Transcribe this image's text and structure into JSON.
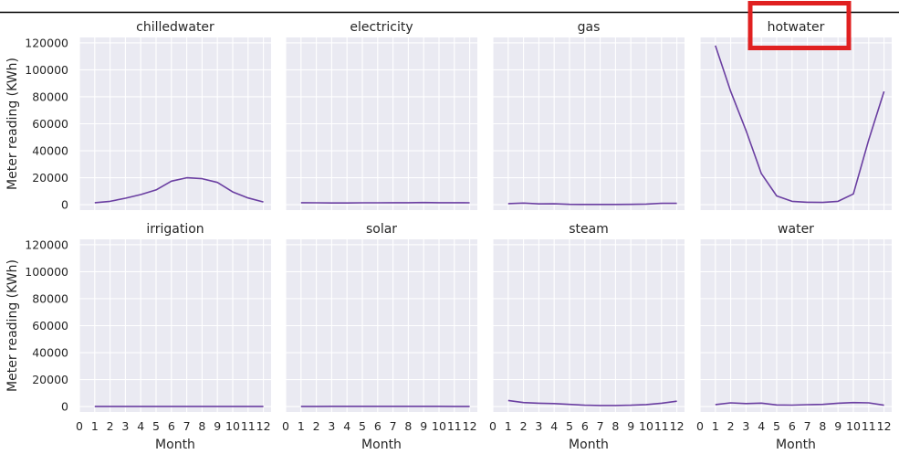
{
  "chart_data": {
    "type": "line",
    "layout": "facet-grid",
    "rows": 2,
    "cols": 4,
    "xlabel": "Month",
    "ylabel": "Meter reading (KWh)",
    "xlim": [
      0,
      12.5
    ],
    "ylim": [
      -4000,
      124000
    ],
    "xticks": [
      0,
      1,
      2,
      3,
      4,
      5,
      6,
      7,
      8,
      9,
      10,
      11,
      12
    ],
    "yticks": [
      0,
      20000,
      40000,
      60000,
      80000,
      100000,
      120000
    ],
    "grid": true,
    "line_color": "#6a3ea1",
    "background": "#eaeaf2",
    "highlight": {
      "panel": "hotwater",
      "color": "#e02020"
    },
    "x": [
      1,
      2,
      3,
      4,
      5,
      6,
      7,
      8,
      9,
      10,
      11,
      12
    ],
    "panels": [
      {
        "name": "chilledwater",
        "values": [
          1500,
          2500,
          4800,
          7500,
          11000,
          17500,
          20000,
          19300,
          16500,
          9500,
          5000,
          2000
        ]
      },
      {
        "name": "electricity",
        "values": [
          1500,
          1400,
          1300,
          1300,
          1400,
          1400,
          1500,
          1500,
          1600,
          1500,
          1500,
          1400
        ]
      },
      {
        "name": "gas",
        "values": [
          800,
          1200,
          600,
          700,
          300,
          200,
          200,
          200,
          300,
          500,
          1000,
          1000
        ]
      },
      {
        "name": "hotwater",
        "values": [
          118000,
          84000,
          55000,
          23000,
          6500,
          2500,
          1800,
          1700,
          2500,
          8000,
          48000,
          84000
        ]
      },
      {
        "name": "irrigation",
        "values": [
          100,
          100,
          100,
          100,
          100,
          100,
          100,
          100,
          100,
          100,
          100,
          100
        ]
      },
      {
        "name": "solar",
        "values": [
          150,
          150,
          180,
          200,
          220,
          220,
          220,
          200,
          200,
          180,
          150,
          150
        ]
      },
      {
        "name": "steam",
        "values": [
          4500,
          3000,
          2500,
          2200,
          1600,
          1000,
          800,
          800,
          1000,
          1500,
          2500,
          4000
        ]
      },
      {
        "name": "water",
        "values": [
          1500,
          2800,
          2200,
          2600,
          1200,
          1100,
          1400,
          1600,
          2500,
          3000,
          2800,
          1000
        ]
      }
    ]
  }
}
